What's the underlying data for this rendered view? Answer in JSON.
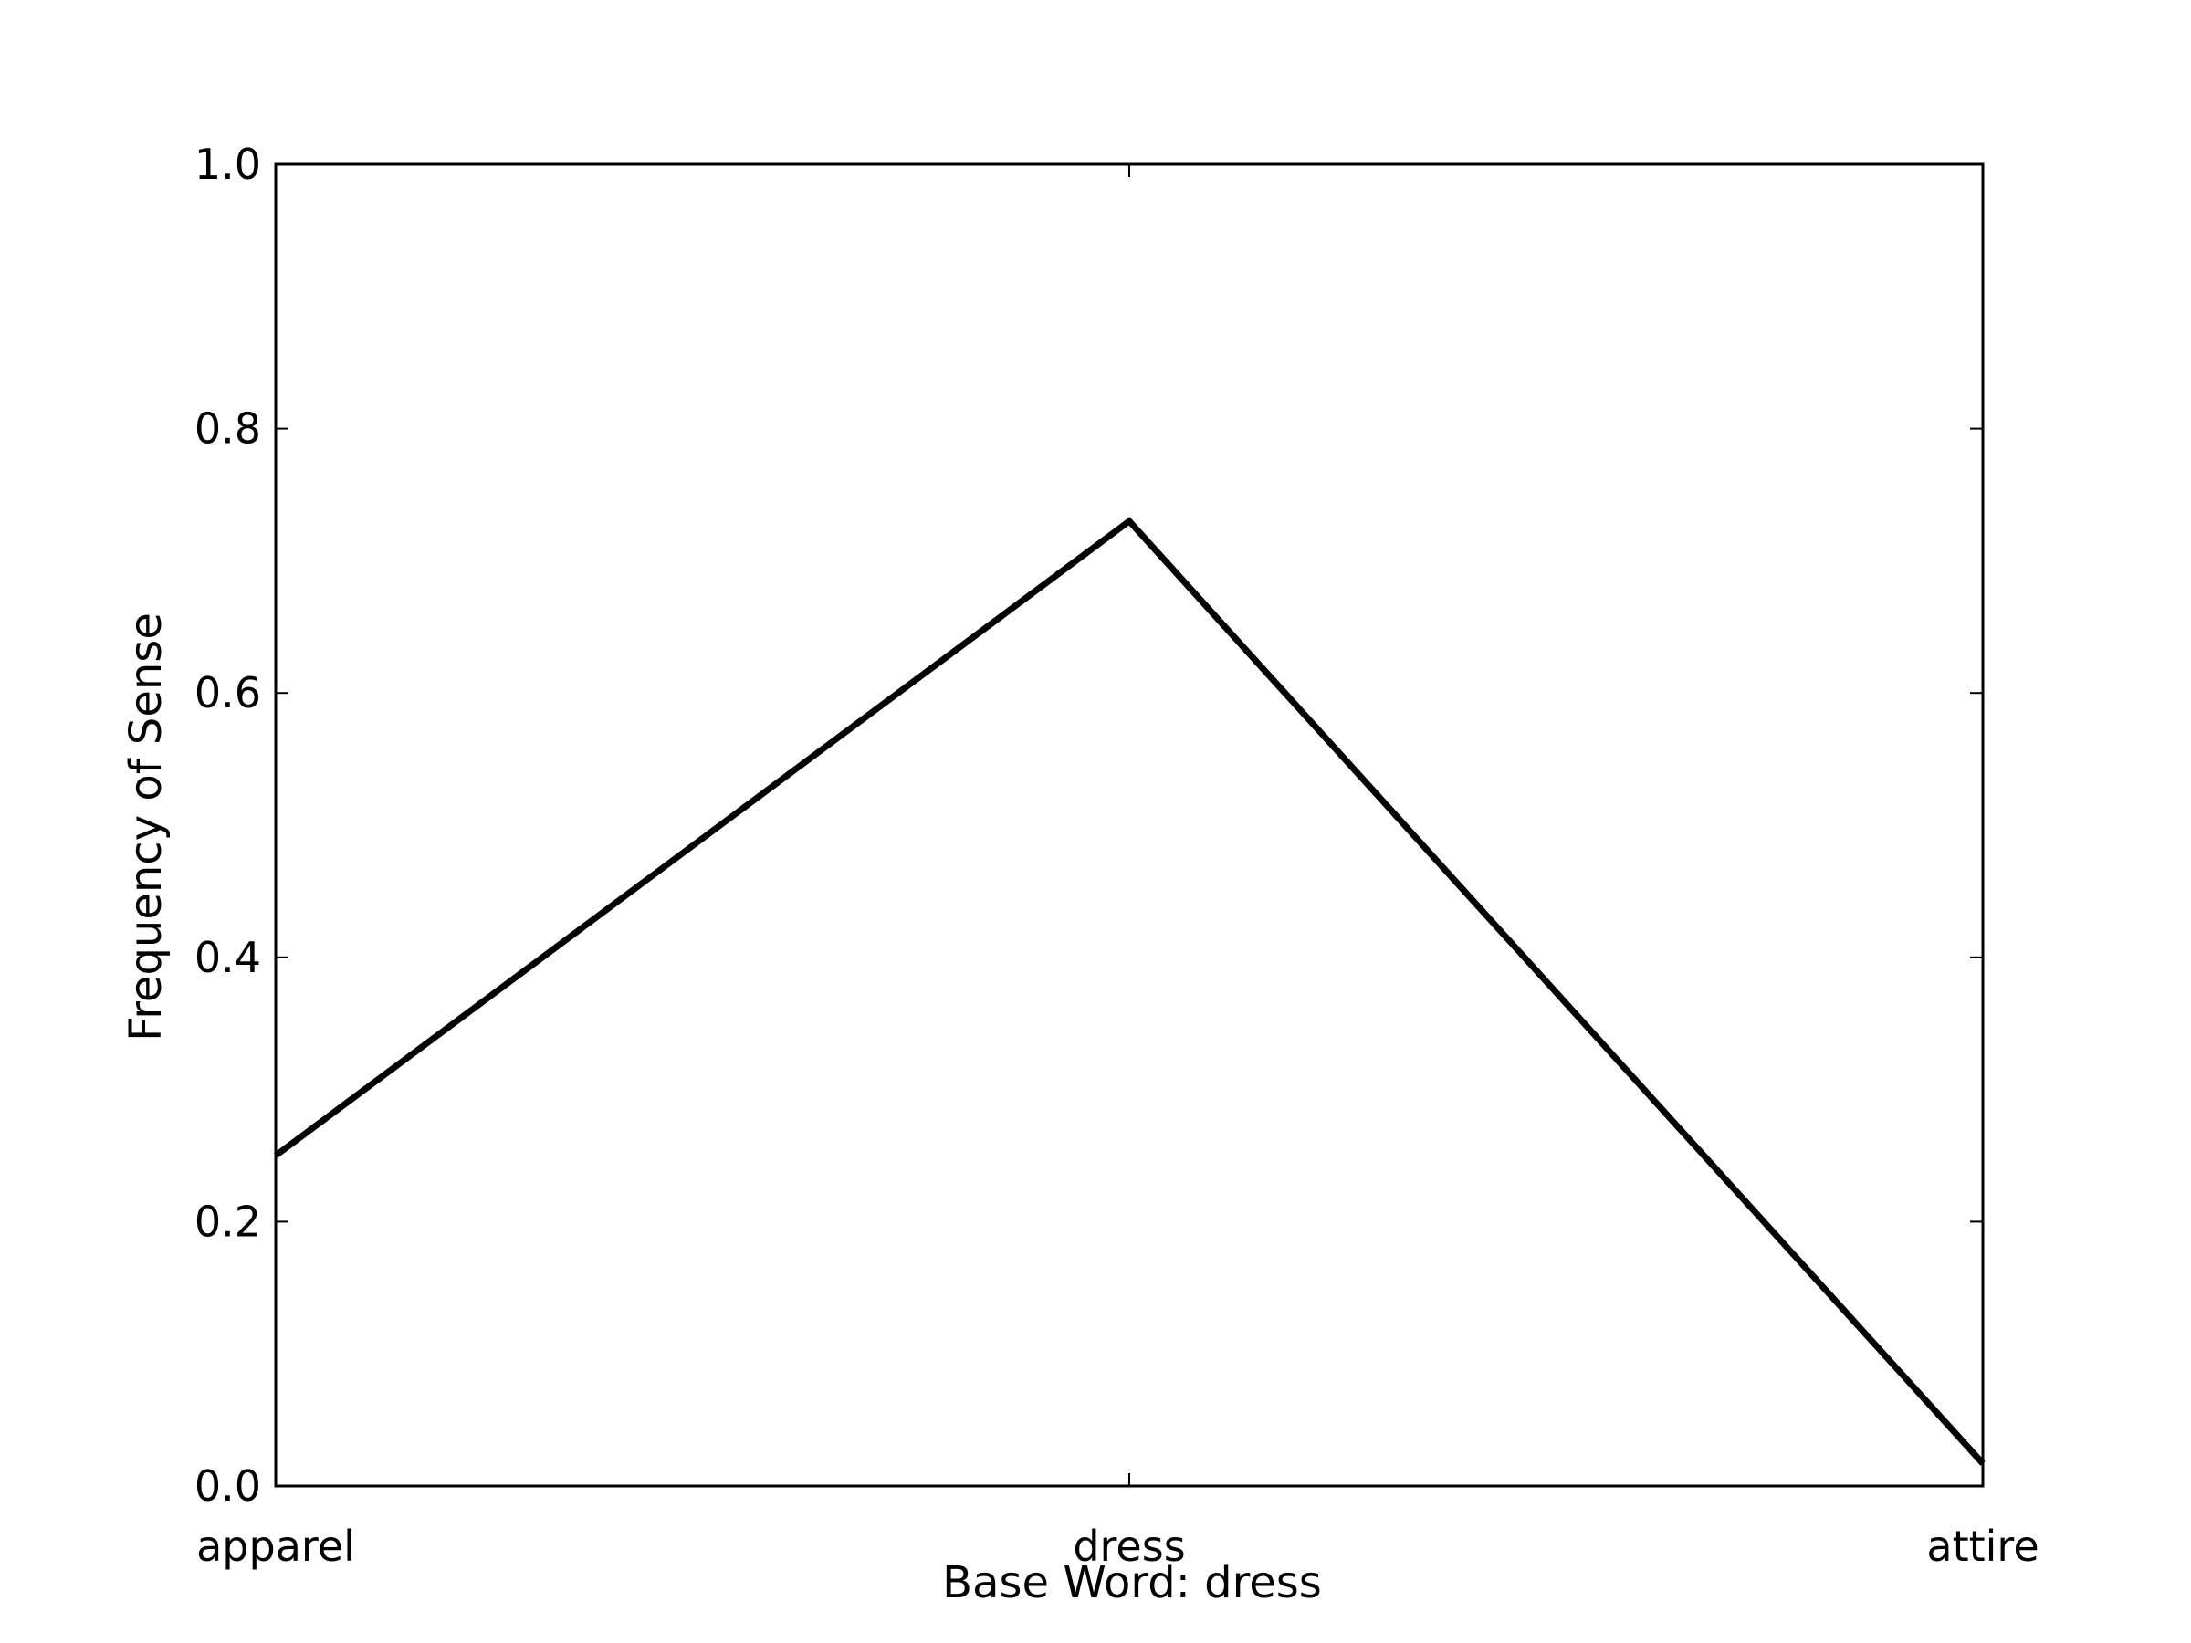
{
  "chart_data": {
    "type": "line",
    "title": "",
    "xlabel": "Base Word: dress",
    "ylabel": "Frequency of Sense",
    "categories": [
      "apparel",
      "dress",
      "attire"
    ],
    "series": [
      {
        "values": [
          0.25,
          0.73,
          0.017
        ]
      }
    ],
    "ylim": [
      0.0,
      1.0
    ],
    "yticks": [
      "0.0",
      "0.2",
      "0.4",
      "0.6",
      "0.8",
      "1.0"
    ],
    "grid": false,
    "legend": "none",
    "colors": {
      "line": "#000000",
      "axes": "#000000",
      "background": "#ffffff"
    }
  }
}
